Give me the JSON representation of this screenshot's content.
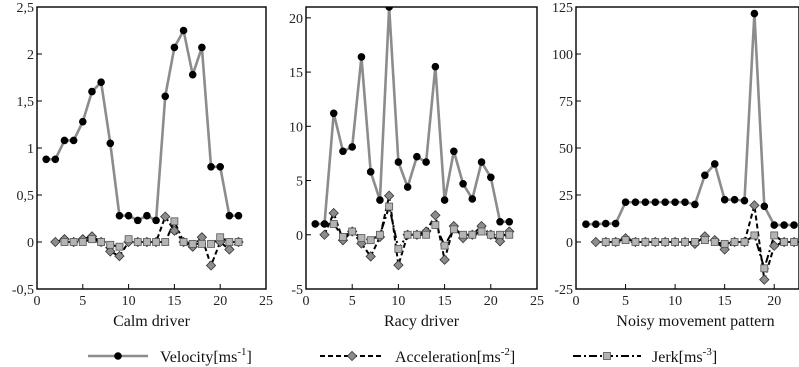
{
  "colors": {
    "velocity": "#8c8c8c",
    "velocity_marker": "#000000",
    "acceleration": "#000000",
    "acceleration_marker": "#8c8c8c",
    "jerk": "#000000",
    "jerk_marker": "#b4b4b4"
  },
  "legend": {
    "placement": "bottom",
    "items": [
      {
        "key": "velocity",
        "label": "Velocity[ms",
        "sup": "-1",
        "close": "]",
        "line": "solid",
        "marker": "circle"
      },
      {
        "key": "acceleration",
        "label": "Acceleration[ms",
        "sup": "-2",
        "close": "]",
        "line": "dashed",
        "marker": "diamond"
      },
      {
        "key": "jerk",
        "label": "Jerk[ms",
        "sup": "-3",
        "close": "]",
        "line": "dashdot",
        "marker": "square"
      }
    ]
  },
  "chart_data": [
    {
      "type": "line",
      "xlabel": "Calm driver",
      "ylabel": "",
      "xlim": [
        0,
        25
      ],
      "ylim": [
        -0.5,
        2.5
      ],
      "xticks": [
        "0",
        "5",
        "10",
        "15",
        "20",
        "25"
      ],
      "yticks": [
        "-0,5",
        "0",
        "0,5",
        "1",
        "1,5",
        "2",
        "2,5"
      ],
      "series": [
        {
          "key": "velocity",
          "x": [
            1,
            2,
            3,
            4,
            5,
            6,
            7,
            8,
            9,
            10,
            11,
            12,
            13,
            14,
            15,
            16,
            17,
            18,
            19,
            20,
            21,
            22
          ],
          "values": [
            0.88,
            0.88,
            1.08,
            1.08,
            1.28,
            1.6,
            1.7,
            1.05,
            0.28,
            0.28,
            0.23,
            0.28,
            0.23,
            1.55,
            2.07,
            2.25,
            1.78,
            2.07,
            0.8,
            0.8,
            0.28,
            0.28
          ]
        },
        {
          "key": "acceleration",
          "x": [
            2,
            3,
            4,
            5,
            6,
            7,
            8,
            9,
            10,
            11,
            12,
            13,
            14,
            15,
            16,
            17,
            18,
            19,
            20,
            21,
            22
          ],
          "values": [
            0.0,
            0.03,
            0.0,
            0.03,
            0.06,
            0.0,
            -0.1,
            -0.15,
            0.0,
            0.0,
            0.0,
            0.0,
            0.27,
            0.12,
            0.0,
            -0.05,
            0.05,
            -0.25,
            0.0,
            -0.08,
            0.0
          ]
        },
        {
          "key": "jerk",
          "x": [
            3,
            4,
            5,
            6,
            7,
            8,
            9,
            10,
            11,
            12,
            13,
            14,
            15,
            16,
            17,
            18,
            19,
            20,
            21,
            22
          ],
          "values": [
            0.0,
            0.0,
            0.0,
            0.03,
            0.0,
            -0.03,
            -0.05,
            0.03,
            0.0,
            0.0,
            0.0,
            0.0,
            0.22,
            0.0,
            -0.02,
            -0.02,
            -0.02,
            0.05,
            0.0,
            0.0
          ]
        }
      ]
    },
    {
      "type": "line",
      "xlabel": "Racy driver",
      "ylabel": "",
      "xlim": [
        0,
        25
      ],
      "ylim": [
        -5,
        21
      ],
      "xticks": [
        "0",
        "5",
        "10",
        "15",
        "20",
        "25"
      ],
      "yticks": [
        "-5",
        "0",
        "5",
        "10",
        "15",
        "20"
      ],
      "series": [
        {
          "key": "velocity",
          "x": [
            1,
            2,
            3,
            4,
            5,
            6,
            7,
            8,
            9,
            10,
            11,
            12,
            13,
            14,
            15,
            16,
            17,
            18,
            19,
            20,
            21,
            22
          ],
          "values": [
            1.0,
            1.0,
            11.2,
            7.7,
            8.1,
            16.4,
            5.8,
            3.2,
            21.0,
            6.7,
            4.4,
            7.2,
            6.7,
            15.5,
            3.2,
            7.7,
            4.7,
            3.3,
            6.7,
            5.3,
            1.2,
            1.2
          ]
        },
        {
          "key": "acceleration",
          "x": [
            2,
            3,
            4,
            5,
            6,
            7,
            8,
            9,
            10,
            11,
            12,
            13,
            14,
            15,
            16,
            17,
            18,
            19,
            20,
            21,
            22
          ],
          "values": [
            0.0,
            2.0,
            -0.5,
            0.3,
            -0.8,
            -2.0,
            -0.2,
            3.6,
            -2.8,
            0.0,
            0.0,
            0.3,
            1.8,
            -2.3,
            0.8,
            -0.3,
            0.0,
            0.8,
            0.0,
            -0.6,
            0.3
          ]
        },
        {
          "key": "jerk",
          "x": [
            3,
            4,
            5,
            6,
            7,
            8,
            9,
            10,
            11,
            12,
            13,
            14,
            15,
            16,
            17,
            18,
            19,
            20,
            21,
            22
          ],
          "values": [
            1.0,
            -0.2,
            0.3,
            -0.3,
            -0.5,
            0.0,
            2.6,
            -1.3,
            0.0,
            0.0,
            0.0,
            0.9,
            -1.0,
            0.5,
            0.0,
            0.0,
            0.3,
            0.0,
            0.0,
            0.0
          ]
        }
      ]
    },
    {
      "type": "line",
      "xlabel": "Noisy movement pattern",
      "ylabel": "",
      "xlim": [
        0,
        22.5
      ],
      "ylim": [
        -25,
        125
      ],
      "xticks": [
        "0",
        "5",
        "10",
        "15",
        "20"
      ],
      "yticks": [
        "-25",
        "0",
        "25",
        "50",
        "75",
        "100",
        "125"
      ],
      "series": [
        {
          "key": "velocity",
          "x": [
            1,
            2,
            3,
            4,
            5,
            6,
            7,
            8,
            9,
            10,
            11,
            12,
            13,
            14,
            15,
            16,
            17,
            18,
            19,
            20,
            21,
            22
          ],
          "values": [
            9.5,
            9.5,
            9.8,
            9.8,
            21.2,
            21.2,
            21.2,
            21.2,
            21.2,
            21.2,
            21.2,
            20.0,
            35.5,
            41.5,
            22.5,
            22.5,
            22.0,
            121.5,
            19.0,
            9.0,
            9.0,
            9.0
          ]
        },
        {
          "key": "acceleration",
          "x": [
            2,
            3,
            4,
            5,
            6,
            7,
            8,
            9,
            10,
            11,
            12,
            13,
            14,
            15,
            16,
            17,
            18,
            19,
            20,
            21,
            22
          ],
          "values": [
            0.0,
            0.0,
            0.0,
            2.0,
            0.0,
            0.0,
            0.0,
            0.0,
            0.0,
            0.0,
            -1.0,
            3.0,
            1.0,
            -4.0,
            0.0,
            0.0,
            19.5,
            -20.0,
            -2.0,
            0.0,
            0.0
          ]
        },
        {
          "key": "jerk",
          "x": [
            3,
            4,
            5,
            6,
            7,
            8,
            9,
            10,
            11,
            12,
            13,
            14,
            15,
            16,
            17,
            18,
            19,
            20,
            21,
            22
          ],
          "values": [
            0.0,
            0.0,
            1.0,
            0.0,
            0.0,
            0.0,
            0.0,
            0.0,
            0.0,
            0.0,
            1.0,
            0.0,
            -1.0,
            0.0,
            0.0,
            3.5,
            -14.0,
            3.5,
            0.0,
            0.0
          ]
        }
      ]
    }
  ]
}
